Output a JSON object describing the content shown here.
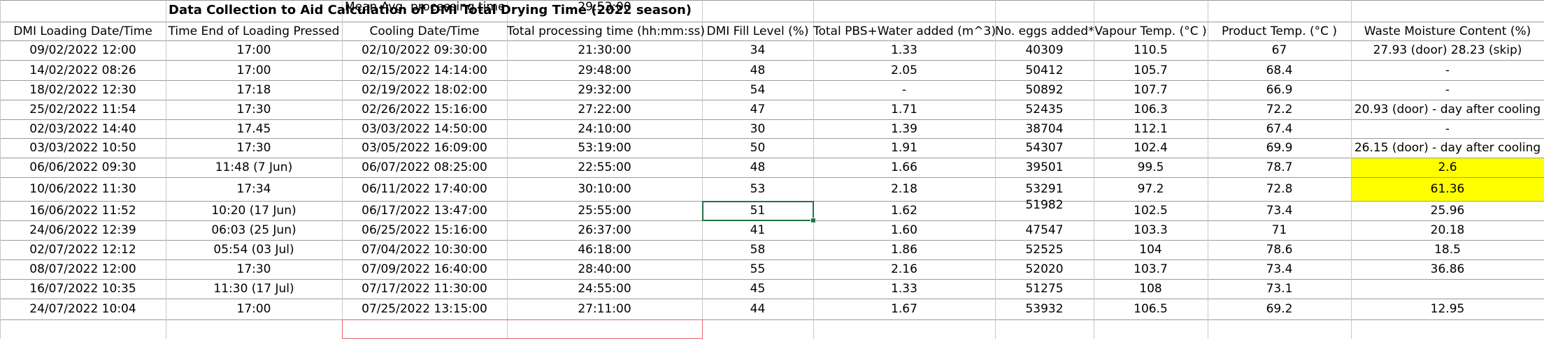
{
  "title": "Data Collection to Aid Calculation of DMI Total Drying Time (2022 season)",
  "headers": [
    "DMI Loading Date/Time",
    "Time End of Loading Pressed",
    "Cooling Date/Time",
    "Total processing time (hh:mm:ss)",
    "DMI Fill Level (%)",
    "Total PBS+Water added (m^3)",
    "No. eggs added*",
    "Vapour Temp. (°C )",
    "Product Temp. (°C )",
    "Waste Moisture Content (%)"
  ],
  "rows": [
    [
      "09/02/2022 12:00",
      "17:00",
      "02/10/2022 09:30:00",
      "21:30:00",
      "34",
      "1.33",
      "40309",
      "110.5",
      "67",
      "27.93 (door) 28.23 (skip)"
    ],
    [
      "14/02/2022 08:26",
      "17:00",
      "02/15/2022 14:14:00",
      "29:48:00",
      "48",
      "2.05",
      "50412",
      "105.7",
      "68.4",
      "-"
    ],
    [
      "18/02/2022 12:30",
      "17:18",
      "02/19/2022 18:02:00",
      "29:32:00",
      "54",
      "-",
      "50892",
      "107.7",
      "66.9",
      "-"
    ],
    [
      "25/02/2022 11:54",
      "17:30",
      "02/26/2022 15:16:00",
      "27:22:00",
      "47",
      "1.71",
      "52435",
      "106.3",
      "72.2",
      "20.93 (door) - day after cooling"
    ],
    [
      "02/03/2022 14:40",
      "17.45",
      "03/03/2022 14:50:00",
      "24:10:00",
      "30",
      "1.39",
      "38704",
      "112.1",
      "67.4",
      "-"
    ],
    [
      "03/03/2022 10:50",
      "17:30",
      "03/05/2022 16:09:00",
      "53:19:00",
      "50",
      "1.91",
      "54307",
      "102.4",
      "69.9",
      "26.15 (door) - day after cooling"
    ],
    [
      "06/06/2022 09:30",
      "11:48 (7 Jun)",
      "06/07/2022 08:25:00",
      "22:55:00",
      "48",
      "1.66",
      "39501",
      "99.5",
      "78.7",
      "2.6"
    ],
    [
      "10/06/2022 11:30",
      "17:34",
      "06/11/2022 17:40:00",
      "30:10:00",
      "53",
      "2.18",
      "53291",
      "97.2",
      "72.8",
      "61.36"
    ],
    [
      "16/06/2022 11:52",
      "10:20 (17 Jun)",
      "06/17/2022 13:47:00",
      "25:55:00",
      "51",
      "1.62",
      "51982",
      "102.5",
      "73.4",
      "25.96"
    ],
    [
      "24/06/2022 12:39",
      "06:03 (25 Jun)",
      "06/25/2022 15:16:00",
      "26:37:00",
      "41",
      "1.60",
      "47547",
      "103.3",
      "71",
      "20.18"
    ],
    [
      "02/07/2022 12:12",
      "05:54 (03 Jul)",
      "07/04/2022 10:30:00",
      "46:18:00",
      "58",
      "1.86",
      "52525",
      "104",
      "78.6",
      "18.5"
    ],
    [
      "08/07/2022 12:00",
      "17:30",
      "07/09/2022 16:40:00",
      "28:40:00",
      "55",
      "2.16",
      "52020",
      "103.7",
      "73.4",
      "36.86"
    ],
    [
      "16/07/2022 10:35",
      "11:30 (17 Jul)",
      "07/17/2022 11:30:00",
      "24:55:00",
      "45",
      "1.33",
      "51275",
      "108",
      "73.1",
      ""
    ],
    [
      "24/07/2022 10:04",
      "17:00",
      "07/25/2022 13:15:00",
      "27:11:00",
      "44",
      "1.67",
      "53932",
      "106.5",
      "69.2",
      "12.95"
    ]
  ],
  "summary": {
    "label": "Mean Avg. processing time",
    "value": "29:53:00"
  },
  "colors": {
    "highlight": "#ffff00",
    "summary_border": "#e06666",
    "selection_border": "#217346",
    "grid": "#9a9a9a"
  }
}
